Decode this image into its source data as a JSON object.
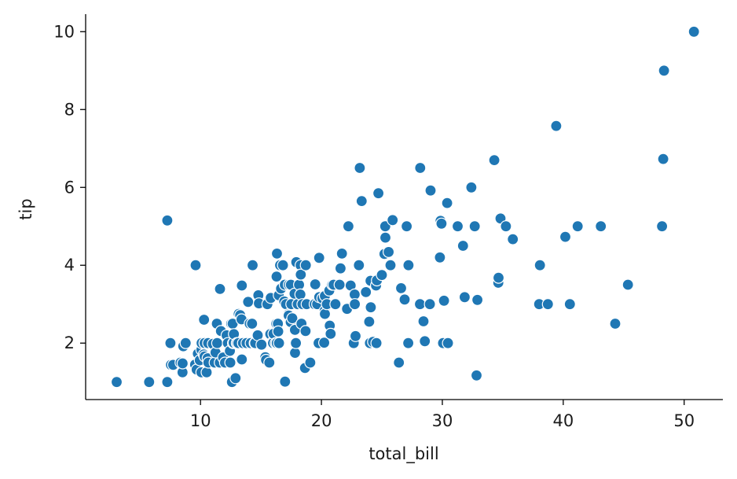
{
  "chart_data": {
    "type": "scatter",
    "title": "",
    "xlabel": "total_bill",
    "ylabel": "tip",
    "xlim": [
      0.5,
      53.2
    ],
    "ylim": [
      0.55,
      10.45
    ],
    "xticks": [
      10,
      20,
      30,
      40,
      50
    ],
    "yticks": [
      2,
      4,
      6,
      8,
      10
    ],
    "grid": false,
    "color": "#1f77b4",
    "series": [
      {
        "points": [
          [
            3.07,
            1.0
          ],
          [
            5.75,
            1.0
          ],
          [
            7.25,
            1.0
          ],
          [
            7.25,
            5.15
          ],
          [
            7.51,
            2.0
          ],
          [
            7.56,
            1.44
          ],
          [
            7.74,
            1.44
          ],
          [
            8.35,
            1.5
          ],
          [
            8.51,
            1.25
          ],
          [
            8.52,
            1.48
          ],
          [
            8.58,
            1.92
          ],
          [
            8.77,
            2.0
          ],
          [
            9.55,
            1.45
          ],
          [
            9.6,
            4.0
          ],
          [
            9.68,
            1.32
          ],
          [
            9.78,
            1.73
          ],
          [
            9.94,
            1.56
          ],
          [
            10.07,
            1.83
          ],
          [
            10.07,
            1.25
          ],
          [
            10.09,
            2.0
          ],
          [
            10.27,
            1.71
          ],
          [
            10.29,
            2.6
          ],
          [
            10.33,
            2.0
          ],
          [
            10.34,
            1.66
          ],
          [
            10.34,
            2.0
          ],
          [
            10.51,
            1.25
          ],
          [
            10.59,
            1.61
          ],
          [
            10.63,
            2.0
          ],
          [
            10.65,
            1.5
          ],
          [
            11.02,
            1.98
          ],
          [
            11.17,
            1.5
          ],
          [
            11.24,
            1.76
          ],
          [
            11.35,
            2.5
          ],
          [
            11.38,
            2.0
          ],
          [
            11.59,
            1.5
          ],
          [
            11.61,
            3.39
          ],
          [
            11.69,
            2.31
          ],
          [
            11.87,
            1.63
          ],
          [
            12.03,
            1.5
          ],
          [
            12.16,
            2.2
          ],
          [
            12.26,
            2.0
          ],
          [
            12.43,
            1.8
          ],
          [
            12.46,
            1.5
          ],
          [
            12.54,
            2.5
          ],
          [
            12.6,
            1.0
          ],
          [
            12.66,
            2.5
          ],
          [
            12.69,
            2.0
          ],
          [
            12.74,
            2.01
          ],
          [
            12.76,
            2.23
          ],
          [
            12.9,
            1.1
          ],
          [
            13.0,
            2.0
          ],
          [
            13.03,
            2.0
          ],
          [
            13.13,
            2.0
          ],
          [
            13.16,
            2.75
          ],
          [
            13.28,
            2.72
          ],
          [
            13.39,
            2.61
          ],
          [
            13.42,
            1.58
          ],
          [
            13.42,
            3.48
          ],
          [
            13.51,
            2.0
          ],
          [
            13.81,
            2.0
          ],
          [
            13.94,
            3.06
          ],
          [
            14.07,
            2.5
          ],
          [
            14.15,
            2.0
          ],
          [
            14.26,
            2.5
          ],
          [
            14.31,
            4.0
          ],
          [
            14.48,
            2.0
          ],
          [
            14.52,
            2.0
          ],
          [
            14.73,
            2.2
          ],
          [
            14.78,
            3.23
          ],
          [
            14.83,
            3.02
          ],
          [
            15.04,
            1.96
          ],
          [
            15.36,
            1.64
          ],
          [
            15.42,
            1.57
          ],
          [
            15.53,
            3.0
          ],
          [
            15.69,
            1.5
          ],
          [
            15.77,
            2.23
          ],
          [
            15.81,
            3.16
          ],
          [
            15.95,
            2.0
          ],
          [
            15.98,
            2.03
          ],
          [
            16.0,
            2.0
          ],
          [
            16.04,
            2.24
          ],
          [
            16.21,
            2.0
          ],
          [
            16.27,
            2.5
          ],
          [
            16.29,
            3.71
          ],
          [
            16.31,
            2.0
          ],
          [
            16.32,
            4.3
          ],
          [
            16.4,
            2.5
          ],
          [
            16.43,
            2.3
          ],
          [
            16.47,
            3.23
          ],
          [
            16.49,
            2.0
          ],
          [
            16.58,
            4.0
          ],
          [
            16.66,
            3.4
          ],
          [
            16.82,
            4.0
          ],
          [
            16.93,
            3.07
          ],
          [
            16.97,
            3.5
          ],
          [
            16.99,
            1.01
          ],
          [
            17.07,
            3.0
          ],
          [
            17.26,
            2.74
          ],
          [
            17.29,
            2.71
          ],
          [
            17.31,
            3.5
          ],
          [
            17.46,
            2.54
          ],
          [
            17.47,
            3.5
          ],
          [
            17.51,
            3.0
          ],
          [
            17.59,
            2.64
          ],
          [
            17.78,
            3.27
          ],
          [
            17.81,
            2.34
          ],
          [
            17.82,
            1.75
          ],
          [
            17.89,
            2.0
          ],
          [
            17.92,
            4.08
          ],
          [
            18.04,
            3.0
          ],
          [
            18.15,
            3.5
          ],
          [
            18.24,
            3.76
          ],
          [
            18.26,
            3.25
          ],
          [
            18.28,
            4.0
          ],
          [
            18.29,
            3.76
          ],
          [
            18.35,
            2.5
          ],
          [
            18.43,
            3.0
          ],
          [
            18.64,
            1.36
          ],
          [
            18.69,
            2.31
          ],
          [
            18.71,
            4.0
          ],
          [
            18.78,
            3.0
          ],
          [
            19.08,
            1.5
          ],
          [
            19.44,
            3.0
          ],
          [
            19.49,
            3.51
          ],
          [
            19.65,
            3.0
          ],
          [
            19.77,
            2.0
          ],
          [
            19.81,
            4.19
          ],
          [
            19.82,
            3.18
          ],
          [
            20.08,
            3.15
          ],
          [
            20.23,
            2.01
          ],
          [
            20.27,
            2.83
          ],
          [
            20.29,
            2.75
          ],
          [
            20.29,
            3.21
          ],
          [
            20.45,
            3.0
          ],
          [
            20.65,
            3.35
          ],
          [
            20.69,
            2.45
          ],
          [
            20.76,
            2.24
          ],
          [
            20.9,
            3.5
          ],
          [
            21.01,
            3.5
          ],
          [
            21.16,
            3.0
          ],
          [
            21.5,
            3.5
          ],
          [
            21.58,
            3.92
          ],
          [
            21.7,
            4.3
          ],
          [
            22.12,
            2.88
          ],
          [
            22.23,
            5.0
          ],
          [
            22.42,
            3.48
          ],
          [
            22.67,
            2.0
          ],
          [
            22.75,
            3.25
          ],
          [
            22.76,
            3.0
          ],
          [
            22.82,
            2.18
          ],
          [
            23.1,
            4.0
          ],
          [
            23.17,
            6.5
          ],
          [
            23.33,
            5.65
          ],
          [
            23.68,
            3.31
          ],
          [
            23.95,
            2.55
          ],
          [
            24.01,
            2.0
          ],
          [
            24.06,
            3.6
          ],
          [
            24.08,
            2.92
          ],
          [
            24.27,
            2.03
          ],
          [
            24.52,
            3.48
          ],
          [
            24.55,
            2.0
          ],
          [
            24.59,
            3.61
          ],
          [
            24.71,
            5.85
          ],
          [
            25.0,
            3.75
          ],
          [
            25.21,
            4.29
          ],
          [
            25.28,
            5.0
          ],
          [
            25.29,
            4.71
          ],
          [
            25.56,
            4.34
          ],
          [
            25.71,
            4.0
          ],
          [
            25.89,
            5.16
          ],
          [
            26.41,
            1.5
          ],
          [
            26.59,
            3.41
          ],
          [
            26.86,
            3.14
          ],
          [
            26.88,
            3.12
          ],
          [
            27.05,
            5.0
          ],
          [
            27.18,
            2.0
          ],
          [
            27.2,
            4.0
          ],
          [
            28.15,
            3.0
          ],
          [
            28.17,
            6.5
          ],
          [
            28.44,
            2.56
          ],
          [
            28.55,
            2.05
          ],
          [
            28.97,
            3.0
          ],
          [
            29.03,
            5.92
          ],
          [
            29.8,
            4.2
          ],
          [
            29.85,
            5.14
          ],
          [
            29.93,
            5.07
          ],
          [
            30.06,
            2.0
          ],
          [
            30.14,
            3.09
          ],
          [
            30.4,
            5.6
          ],
          [
            30.46,
            2.0
          ],
          [
            31.27,
            5.0
          ],
          [
            31.71,
            4.5
          ],
          [
            31.85,
            3.18
          ],
          [
            32.4,
            6.0
          ],
          [
            32.68,
            5.0
          ],
          [
            32.83,
            1.17
          ],
          [
            32.9,
            3.11
          ],
          [
            34.3,
            6.7
          ],
          [
            34.63,
            3.55
          ],
          [
            34.65,
            3.68
          ],
          [
            34.81,
            5.2
          ],
          [
            35.26,
            5.0
          ],
          [
            35.83,
            4.67
          ],
          [
            38.01,
            3.0
          ],
          [
            38.07,
            4.0
          ],
          [
            38.73,
            3.0
          ],
          [
            39.42,
            7.58
          ],
          [
            40.17,
            4.73
          ],
          [
            40.55,
            3.0
          ],
          [
            41.19,
            5.0
          ],
          [
            43.11,
            5.0
          ],
          [
            44.3,
            2.5
          ],
          [
            45.35,
            3.5
          ],
          [
            48.17,
            5.0
          ],
          [
            48.27,
            6.73
          ],
          [
            48.33,
            9.0
          ],
          [
            50.81,
            10.0
          ]
        ]
      }
    ]
  }
}
